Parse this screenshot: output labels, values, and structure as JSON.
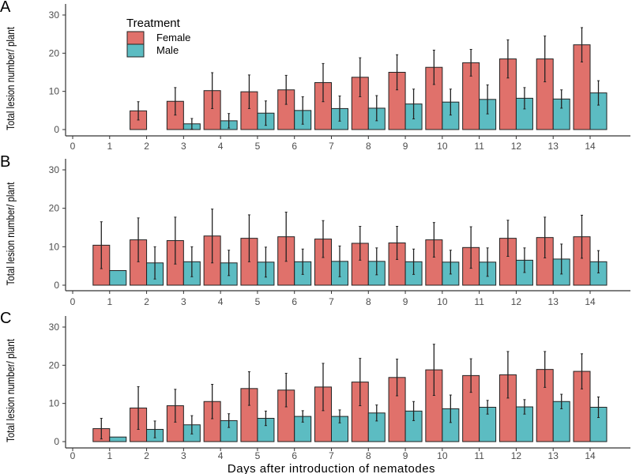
{
  "chart_data": [
    {
      "panel_label": "A",
      "type": "bar",
      "ylabel": "Total lesion number/ plant",
      "xlabel": "",
      "xlim": [
        0,
        14
      ],
      "ylim": [
        0,
        30
      ],
      "x_ticks": [
        0,
        1,
        2,
        3,
        4,
        5,
        6,
        7,
        8,
        9,
        10,
        11,
        12,
        13,
        14
      ],
      "y_ticks": [
        0,
        10,
        20,
        30
      ],
      "grid": false,
      "legend": {
        "title": "Treatment",
        "placement": "top-left",
        "entries": [
          "Female",
          "Male"
        ]
      },
      "categories": [
        1,
        2,
        3,
        4,
        5,
        6,
        7,
        8,
        9,
        10,
        11,
        12,
        13,
        14
      ],
      "series": [
        {
          "name": "Female",
          "color": "#E0716B",
          "values": [
            0,
            4.9,
            7.4,
            10.2,
            9.9,
            10.4,
            12.3,
            13.7,
            15.0,
            16.3,
            17.5,
            18.5,
            18.5,
            22.2
          ],
          "error": [
            0,
            2.4,
            3.6,
            4.7,
            4.4,
            3.8,
            5.0,
            5.1,
            4.6,
            4.5,
            3.5,
            5.0,
            6.0,
            4.5
          ]
        },
        {
          "name": "Male",
          "color": "#5CBCC2",
          "values": [
            0,
            0,
            1.5,
            2.3,
            4.3,
            5.0,
            5.5,
            5.6,
            6.7,
            7.2,
            7.9,
            8.2,
            8.0,
            9.6
          ],
          "error": [
            0,
            0,
            1.4,
            1.9,
            3.2,
            3.6,
            3.3,
            3.3,
            3.9,
            3.4,
            3.8,
            2.8,
            2.4,
            3.2
          ]
        }
      ]
    },
    {
      "panel_label": "B",
      "type": "bar",
      "ylabel": "Total lesion number/ plant",
      "xlabel": "",
      "xlim": [
        0,
        14
      ],
      "ylim": [
        0,
        30
      ],
      "x_ticks": [
        0,
        1,
        2,
        3,
        4,
        5,
        6,
        7,
        8,
        9,
        10,
        11,
        12,
        13,
        14
      ],
      "y_ticks": [
        0,
        10,
        20,
        30
      ],
      "grid": false,
      "categories": [
        1,
        2,
        3,
        4,
        5,
        6,
        7,
        8,
        9,
        10,
        11,
        12,
        13,
        14
      ],
      "series": [
        {
          "name": "Female",
          "color": "#E0716B",
          "values": [
            10.4,
            11.8,
            11.6,
            12.8,
            12.2,
            12.6,
            12.0,
            10.9,
            11.0,
            11.8,
            9.8,
            12.2,
            12.4,
            12.6
          ],
          "error": [
            6.1,
            5.7,
            6.1,
            7.0,
            6.1,
            6.4,
            4.8,
            4.4,
            4.3,
            4.5,
            5.4,
            4.7,
            5.3,
            5.6
          ]
        },
        {
          "name": "Male",
          "color": "#5CBCC2",
          "values": [
            3.8,
            5.8,
            6.1,
            5.8,
            6.0,
            6.1,
            6.2,
            6.2,
            6.1,
            6.0,
            6.0,
            6.5,
            6.8,
            6.1
          ],
          "error": [
            0,
            4.2,
            3.9,
            3.3,
            3.9,
            3.3,
            4.0,
            3.5,
            3.3,
            3.1,
            3.7,
            3.2,
            3.9,
            2.9
          ]
        }
      ]
    },
    {
      "panel_label": "C",
      "type": "bar",
      "ylabel": "Total lesion number/ plant",
      "xlabel": "Days after introduction of nematodes",
      "xlim": [
        0,
        14
      ],
      "ylim": [
        0,
        30
      ],
      "x_ticks": [
        0,
        1,
        2,
        3,
        4,
        5,
        6,
        7,
        8,
        9,
        10,
        11,
        12,
        13,
        14
      ],
      "y_ticks": [
        0,
        10,
        20,
        30
      ],
      "grid": false,
      "categories": [
        1,
        2,
        3,
        4,
        5,
        6,
        7,
        8,
        9,
        10,
        11,
        12,
        13,
        14
      ],
      "series": [
        {
          "name": "Female",
          "color": "#E0716B",
          "values": [
            3.4,
            8.8,
            9.4,
            10.5,
            13.9,
            13.5,
            14.3,
            15.6,
            16.8,
            18.8,
            17.3,
            17.5,
            18.9,
            18.4
          ],
          "error": [
            2.7,
            5.6,
            4.3,
            4.5,
            4.4,
            4.4,
            6.2,
            6.2,
            4.8,
            6.7,
            4.4,
            6.1,
            4.7,
            4.6
          ]
        },
        {
          "name": "Male",
          "color": "#5CBCC2",
          "values": [
            1.2,
            3.2,
            4.4,
            5.5,
            6.1,
            6.6,
            6.6,
            7.5,
            8.0,
            8.6,
            9.0,
            9.1,
            10.5,
            9.0
          ],
          "error": [
            0,
            2.2,
            2.4,
            1.8,
            1.9,
            1.5,
            1.7,
            2.1,
            2.5,
            3.6,
            1.8,
            1.9,
            1.9,
            2.7
          ]
        }
      ]
    }
  ]
}
